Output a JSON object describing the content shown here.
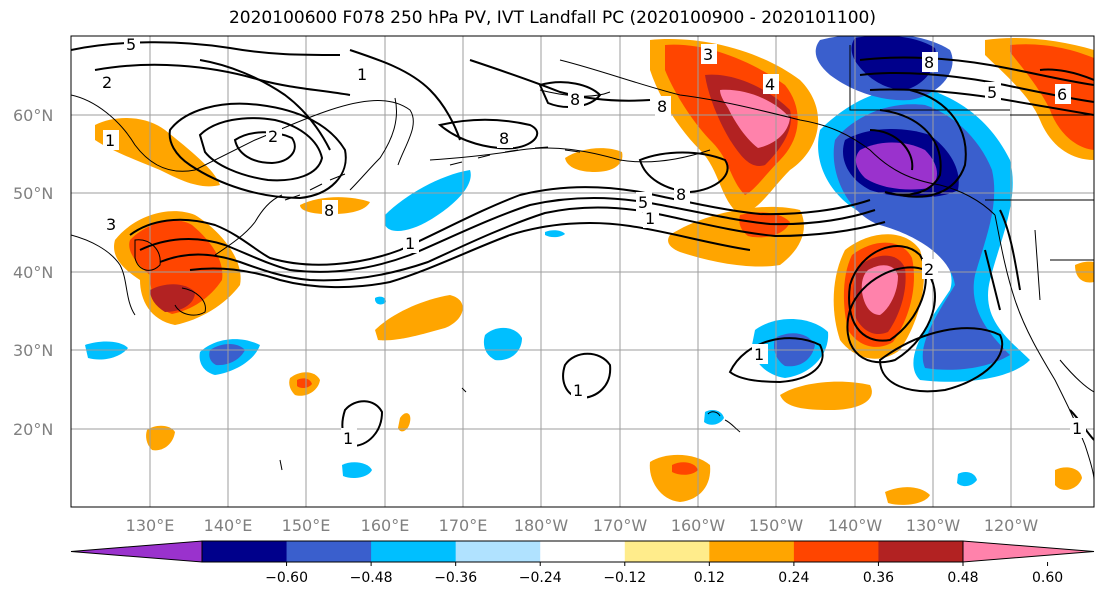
{
  "title": "2020100600 F078 250 hPa PV, IVT Landfall PC (2020100900 - 2020101100)",
  "latitude_labels": [
    "20°N",
    "30°N",
    "40°N",
    "50°N",
    "60°N"
  ],
  "longitude_labels": [
    "130°E",
    "140°E",
    "150°E",
    "160°E",
    "170°E",
    "180°W",
    "170°W",
    "160°W",
    "150°W",
    "140°W",
    "130°W",
    "120°W"
  ],
  "colorbar": {
    "tick_labels": [
      "−0.60",
      "−0.48",
      "−0.36",
      "−0.24",
      "−0.12",
      "0.12",
      "0.24",
      "0.36",
      "0.48",
      "0.60"
    ],
    "colors": [
      "#9a32cd",
      "#00008b",
      "#3a5fcd",
      "#00bfff",
      "#b0e2ff",
      "#ffffff",
      "#ffec8b",
      "#ffa500",
      "#ff4500",
      "#b22222",
      "#ff82ab"
    ]
  },
  "contour_labels": [
    "5",
    "2",
    "1",
    "2",
    "1",
    "8",
    "8",
    "8",
    "1",
    "8",
    "5",
    "1",
    "4",
    "3",
    "8",
    "6",
    "5",
    "2",
    "1",
    "1",
    "1",
    "1",
    "3",
    "8"
  ]
}
